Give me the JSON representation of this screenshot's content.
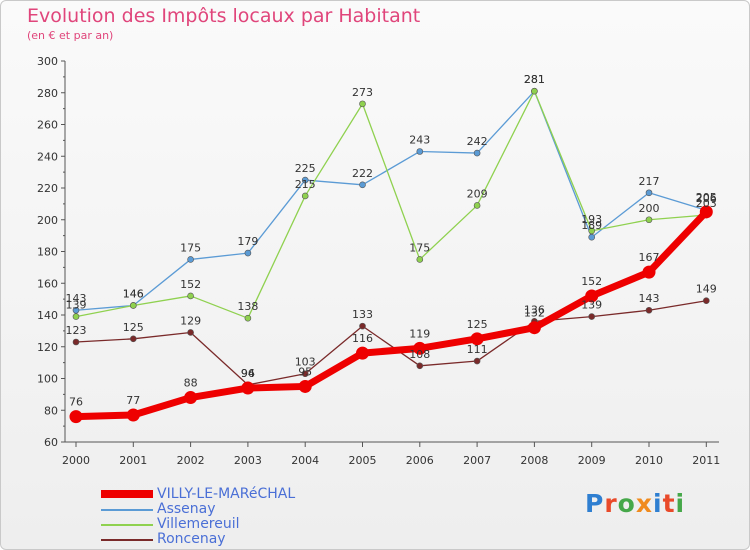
{
  "header": {
    "title": "Evolution des Impôts locaux par Habitant",
    "subtitle": "(en € et par an)"
  },
  "brand": {
    "text": "Proxiti",
    "colors": [
      "#2f7fd1",
      "#e94a2a",
      "#46a84a",
      "#f08b1e",
      "#2f7fd1",
      "#e94a2a",
      "#46a84a"
    ]
  },
  "chart_data": {
    "type": "line",
    "x": [
      "2000",
      "2001",
      "2002",
      "2003",
      "2004",
      "2005",
      "2006",
      "2007",
      "2008",
      "2009",
      "2010",
      "2011"
    ],
    "ylim": [
      60,
      300
    ],
    "yticks": [
      60,
      80,
      100,
      120,
      140,
      160,
      180,
      200,
      220,
      240,
      260,
      280,
      300
    ],
    "grid": false,
    "legend_position": "bottom-left",
    "series": [
      {
        "name": "Assenay",
        "color": "#5b9bd5",
        "values": [
          143,
          146,
          175,
          179,
          225,
          222,
          243,
          242,
          281,
          189,
          217,
          206
        ]
      },
      {
        "name": "Villemereuil",
        "color": "#8fd14f",
        "values": [
          139,
          146,
          152,
          138,
          215,
          273,
          175,
          209,
          281,
          193,
          200,
          203
        ]
      },
      {
        "name": "Roncenay",
        "color": "#7a2a2a",
        "values": [
          123,
          125,
          129,
          96,
          103,
          133,
          108,
          111,
          136,
          139,
          143,
          149
        ]
      },
      {
        "name": "VILLY-LE-MARéCHAL",
        "color": "#ee0000",
        "values": [
          76,
          77,
          88,
          94,
          95,
          116,
          119,
          125,
          132,
          152,
          167,
          205
        ]
      }
    ],
    "legend_order": [
      "VILLY-LE-MARéCHAL",
      "Assenay",
      "Villemereuil",
      "Roncenay"
    ]
  }
}
